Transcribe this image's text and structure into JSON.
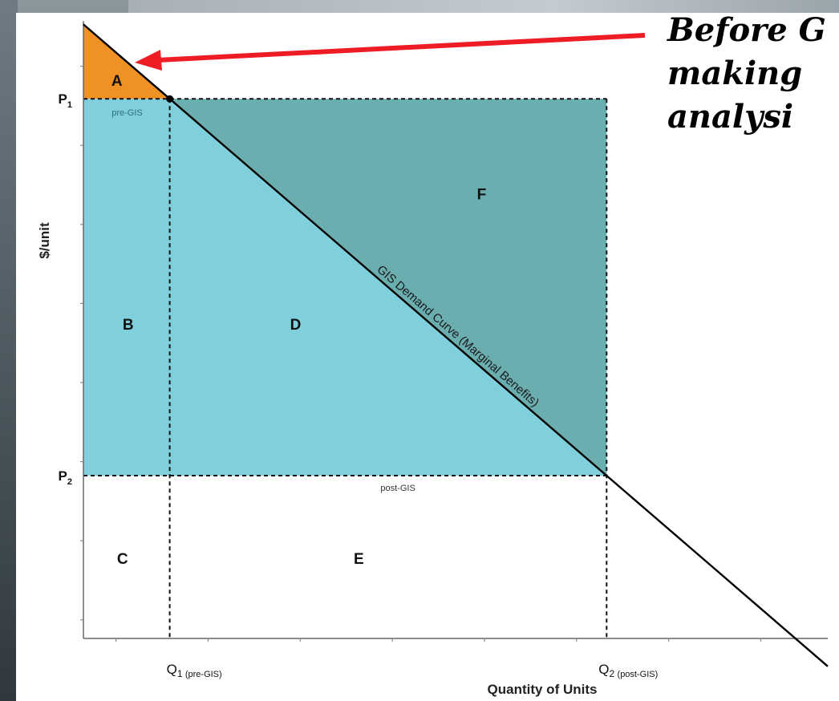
{
  "chart_data": {
    "type": "area",
    "title": "",
    "ylabel": "$/unit",
    "xlabel": "Quantity of Units",
    "xlim": [
      0,
      8
    ],
    "ylim": [
      0,
      7
    ],
    "demand_curve": {
      "name": "GIS Demand Curve (Marginal Benefits)",
      "points": [
        [
          0,
          6.6
        ],
        [
          8,
          -0.3
        ]
      ]
    },
    "points_of_interest": [
      {
        "label": "P1",
        "sub": "1",
        "axis": "y",
        "value": 5.8,
        "note": "pre-GIS"
      },
      {
        "label": "P2",
        "sub": "2",
        "axis": "y",
        "value": 1.75,
        "note": "post-GIS"
      },
      {
        "label": "Q1",
        "sub": "1",
        "axis": "x",
        "value": 1.0,
        "note": "(pre-GIS)"
      },
      {
        "label": "Q2",
        "sub": "2",
        "axis": "x",
        "value": 6.0,
        "note": "(post-GIS)"
      }
    ],
    "regions": [
      {
        "label": "A",
        "color": "#ef9124"
      },
      {
        "label": "B",
        "color": "#7fd0dc"
      },
      {
        "label": "C",
        "color": "#ffffff"
      },
      {
        "label": "D",
        "color": "#7fd0dc"
      },
      {
        "label": "E",
        "color": "#ffffff"
      },
      {
        "label": "F",
        "color": "#6aaeb0"
      }
    ],
    "grid": false,
    "legend": "none"
  },
  "annotation": {
    "lines": [
      "Before G",
      "making",
      "analysi"
    ],
    "arrow_color": "#ee1c24"
  }
}
